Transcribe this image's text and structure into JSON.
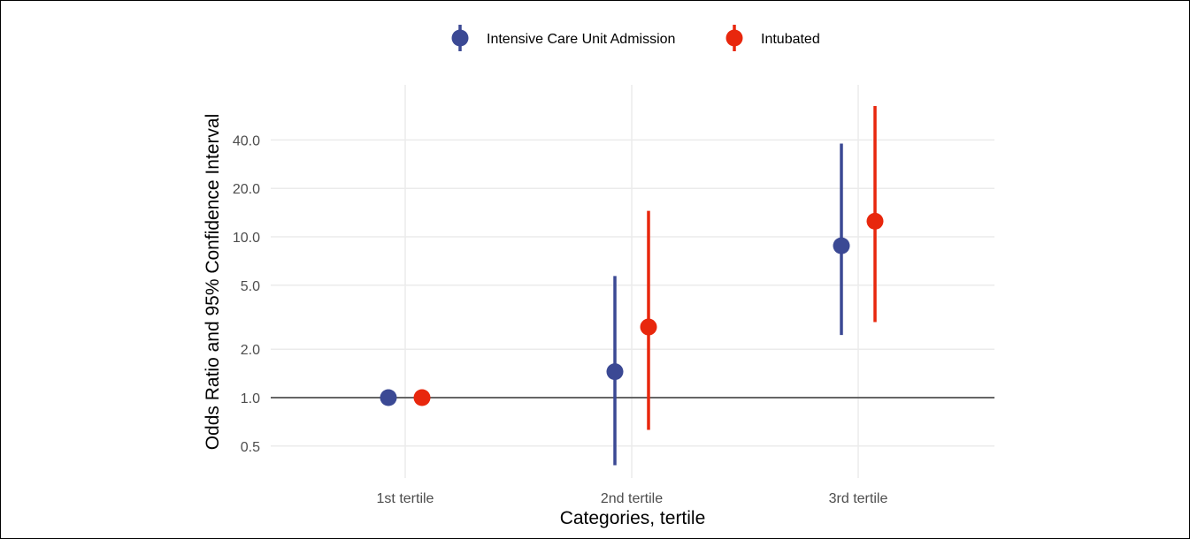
{
  "chart_data": {
    "type": "scatter",
    "subtype": "point-range (odds ratio with 95% CI)",
    "title": "",
    "xlabel": "Categories, tertile",
    "ylabel": "Odds Ratio and 95% Confidence Interval",
    "categories": [
      "1st tertile",
      "2nd tertile",
      "3rd tertile"
    ],
    "y_scale": "log",
    "ylim": [
      0.35,
      75
    ],
    "y_ticks": [
      0.5,
      1.0,
      2.0,
      5.0,
      10.0,
      20.0,
      40.0
    ],
    "y_tick_labels": [
      "0.5",
      "1.0",
      "2.0",
      "5.0",
      "10.0",
      "20.0",
      "40.0"
    ],
    "reference_line": 1.0,
    "grid": true,
    "legend_position": "top",
    "series": [
      {
        "name": "Intensive Care Unit Admission",
        "color": "#3b4994",
        "points": [
          {
            "category": "1st tertile",
            "or": 1.0,
            "lower": null,
            "upper": null
          },
          {
            "category": "2nd tertile",
            "or": 1.45,
            "lower": 0.38,
            "upper": 5.7
          },
          {
            "category": "3rd tertile",
            "or": 8.8,
            "lower": 2.45,
            "upper": 38
          }
        ]
      },
      {
        "name": "Intubated",
        "color": "#e8270d",
        "points": [
          {
            "category": "1st tertile",
            "or": 1.0,
            "lower": null,
            "upper": null
          },
          {
            "category": "2nd tertile",
            "or": 2.75,
            "lower": 0.63,
            "upper": 14.5
          },
          {
            "category": "3rd tertile",
            "or": 12.5,
            "lower": 2.95,
            "upper": 65
          }
        ]
      }
    ]
  }
}
